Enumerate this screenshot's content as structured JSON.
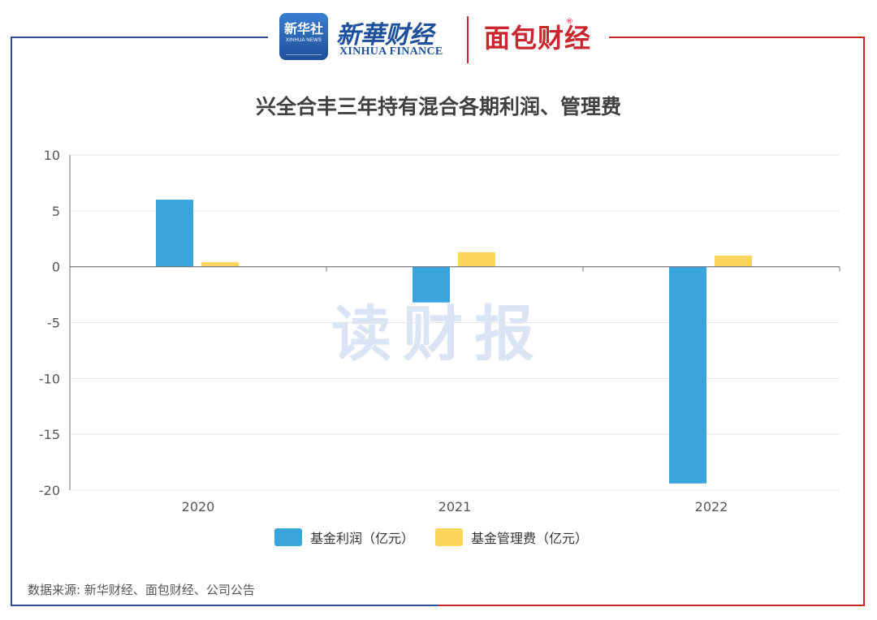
{
  "header": {
    "xinhua_badge_cn": "新华社",
    "xinhua_badge_en": "XINHUA NEWS",
    "xinhua_finance_cn": "新華财经",
    "xinhua_finance_en": "XINHUA FINANCE",
    "mianbao_logo": "面包财经",
    "registered_mark": "®"
  },
  "watermark": "读财报",
  "source": "数据来源: 新华财经、面包财经、公司公告",
  "colors": {
    "profit": "#3aa4dc",
    "fee": "#fbd65a",
    "frame_blue": "#2c4f8f",
    "frame_red": "#c9272d",
    "grid": "#e3e6f0",
    "axis": "#6e7079"
  },
  "chart_data": {
    "type": "bar",
    "title": "兴全合丰三年持有混合各期利润、管理费",
    "categories": [
      "2020",
      "2021",
      "2022"
    ],
    "series": [
      {
        "name": "基金利润（亿元）",
        "values": [
          6.0,
          -3.2,
          -19.4
        ]
      },
      {
        "name": "基金管理费（亿元）",
        "values": [
          0.4,
          1.3,
          1.0
        ]
      }
    ],
    "ylim": [
      -20,
      10
    ],
    "yticks": [
      10,
      5,
      0,
      -5,
      -10,
      -15,
      -20
    ],
    "grid": true,
    "legend": "bottom-center",
    "xlabel": "",
    "ylabel": ""
  }
}
